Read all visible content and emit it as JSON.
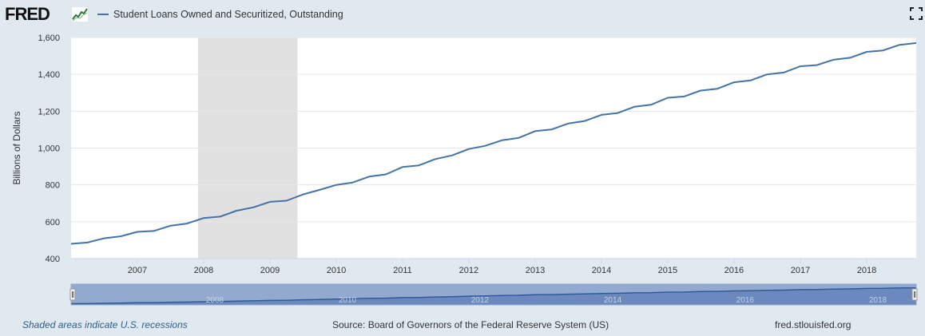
{
  "header": {
    "logo": "FRED",
    "legend_label": "Student Loans Owned and Securitized, Outstanding",
    "series_color": "#4572a7",
    "fullscreen_icon": "fullscreen-icon"
  },
  "chart_data": {
    "type": "line",
    "ylabel": "Billions of Dollars",
    "xlabel": "",
    "ylim": [
      400,
      1600
    ],
    "yticks": [
      "400",
      "600",
      "800",
      "1,000",
      "1,200",
      "1,400",
      "1,600"
    ],
    "xticks": [
      "2007",
      "2008",
      "2009",
      "2010",
      "2011",
      "2012",
      "2013",
      "2014",
      "2015",
      "2016",
      "2017",
      "2018"
    ],
    "xlim": [
      "2006-01-01",
      "2018-10-01"
    ],
    "recession": {
      "start": "2007-12-01",
      "end": "2009-06-01"
    },
    "grid": true,
    "series": [
      {
        "color": "#4572a7",
        "x": [
          "2006-01-01",
          "2006-04-01",
          "2006-07-01",
          "2006-10-01",
          "2007-01-01",
          "2007-04-01",
          "2007-07-01",
          "2007-10-01",
          "2008-01-01",
          "2008-04-01",
          "2008-07-01",
          "2008-10-01",
          "2009-01-01",
          "2009-04-01",
          "2009-07-01",
          "2009-10-01",
          "2010-01-01",
          "2010-04-01",
          "2010-07-01",
          "2010-10-01",
          "2011-01-01",
          "2011-04-01",
          "2011-07-01",
          "2011-10-01",
          "2012-01-01",
          "2012-04-01",
          "2012-07-01",
          "2012-10-01",
          "2013-01-01",
          "2013-04-01",
          "2013-07-01",
          "2013-10-01",
          "2014-01-01",
          "2014-04-01",
          "2014-07-01",
          "2014-10-01",
          "2015-01-01",
          "2015-04-01",
          "2015-07-01",
          "2015-10-01",
          "2016-01-01",
          "2016-04-01",
          "2016-07-01",
          "2016-10-01",
          "2017-01-01",
          "2017-04-01",
          "2017-07-01",
          "2017-10-01",
          "2018-01-01",
          "2018-04-01",
          "2018-07-01",
          "2018-10-01"
        ],
        "values": [
          480,
          487,
          510,
          521,
          545,
          550,
          578,
          590,
          620,
          628,
          660,
          678,
          708,
          714,
          748,
          773,
          800,
          813,
          845,
          857,
          897,
          906,
          940,
          960,
          995,
          1012,
          1042,
          1055,
          1092,
          1101,
          1133,
          1147,
          1180,
          1190,
          1224,
          1235,
          1273,
          1280,
          1312,
          1322,
          1357,
          1367,
          1400,
          1410,
          1444,
          1450,
          1479,
          1490,
          1522,
          1530,
          1560,
          1570
        ]
      }
    ]
  },
  "navigator": {
    "labels": [
      "2008",
      "2010",
      "2012",
      "2014",
      "2016",
      "2018"
    ]
  },
  "footer": {
    "recession_note": "Shaded areas indicate U.S. recessions",
    "source": "Source: Board of Governors of the Federal Reserve System (US)",
    "site": "fred.stlouisfed.org"
  }
}
